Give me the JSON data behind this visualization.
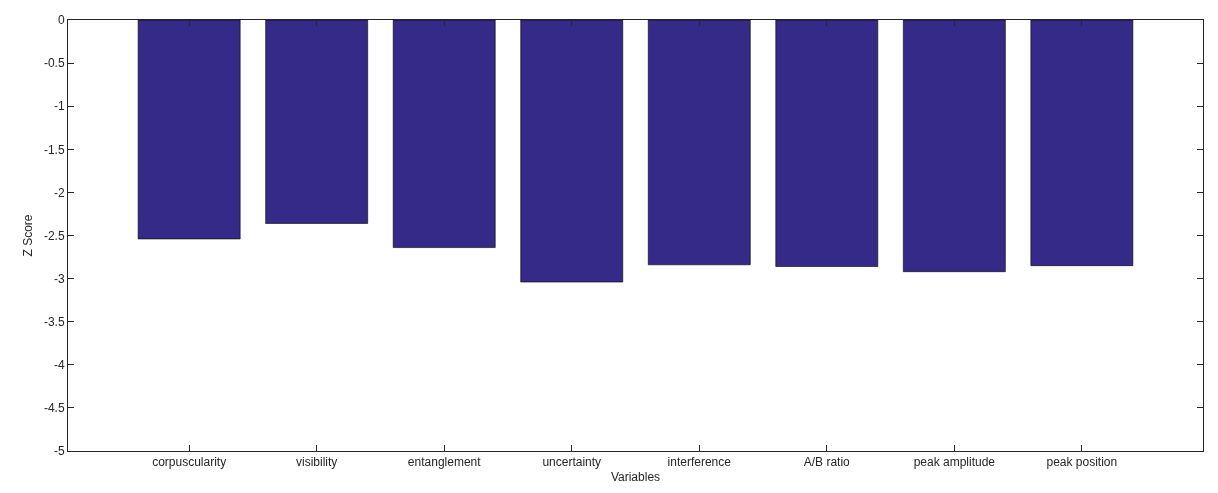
{
  "chart_data": {
    "type": "bar",
    "xlabel": "Variables",
    "ylabel": "Z Score",
    "categories": [
      "corpuscularity",
      "visibility",
      "entanglement",
      "uncertainty",
      "interference",
      "A/B ratio",
      "peak amplitude",
      "peak position"
    ],
    "values": [
      -2.54,
      -2.36,
      -2.64,
      -3.04,
      -2.84,
      -2.86,
      -2.92,
      -2.85
    ],
    "color": "#352a87",
    "ylim": [
      -5,
      0
    ],
    "yticks": [
      -5,
      -4.5,
      -4,
      -3.5,
      -3,
      -2.5,
      -2,
      -1.5,
      -1,
      -0.5,
      0
    ],
    "grid": false
  }
}
